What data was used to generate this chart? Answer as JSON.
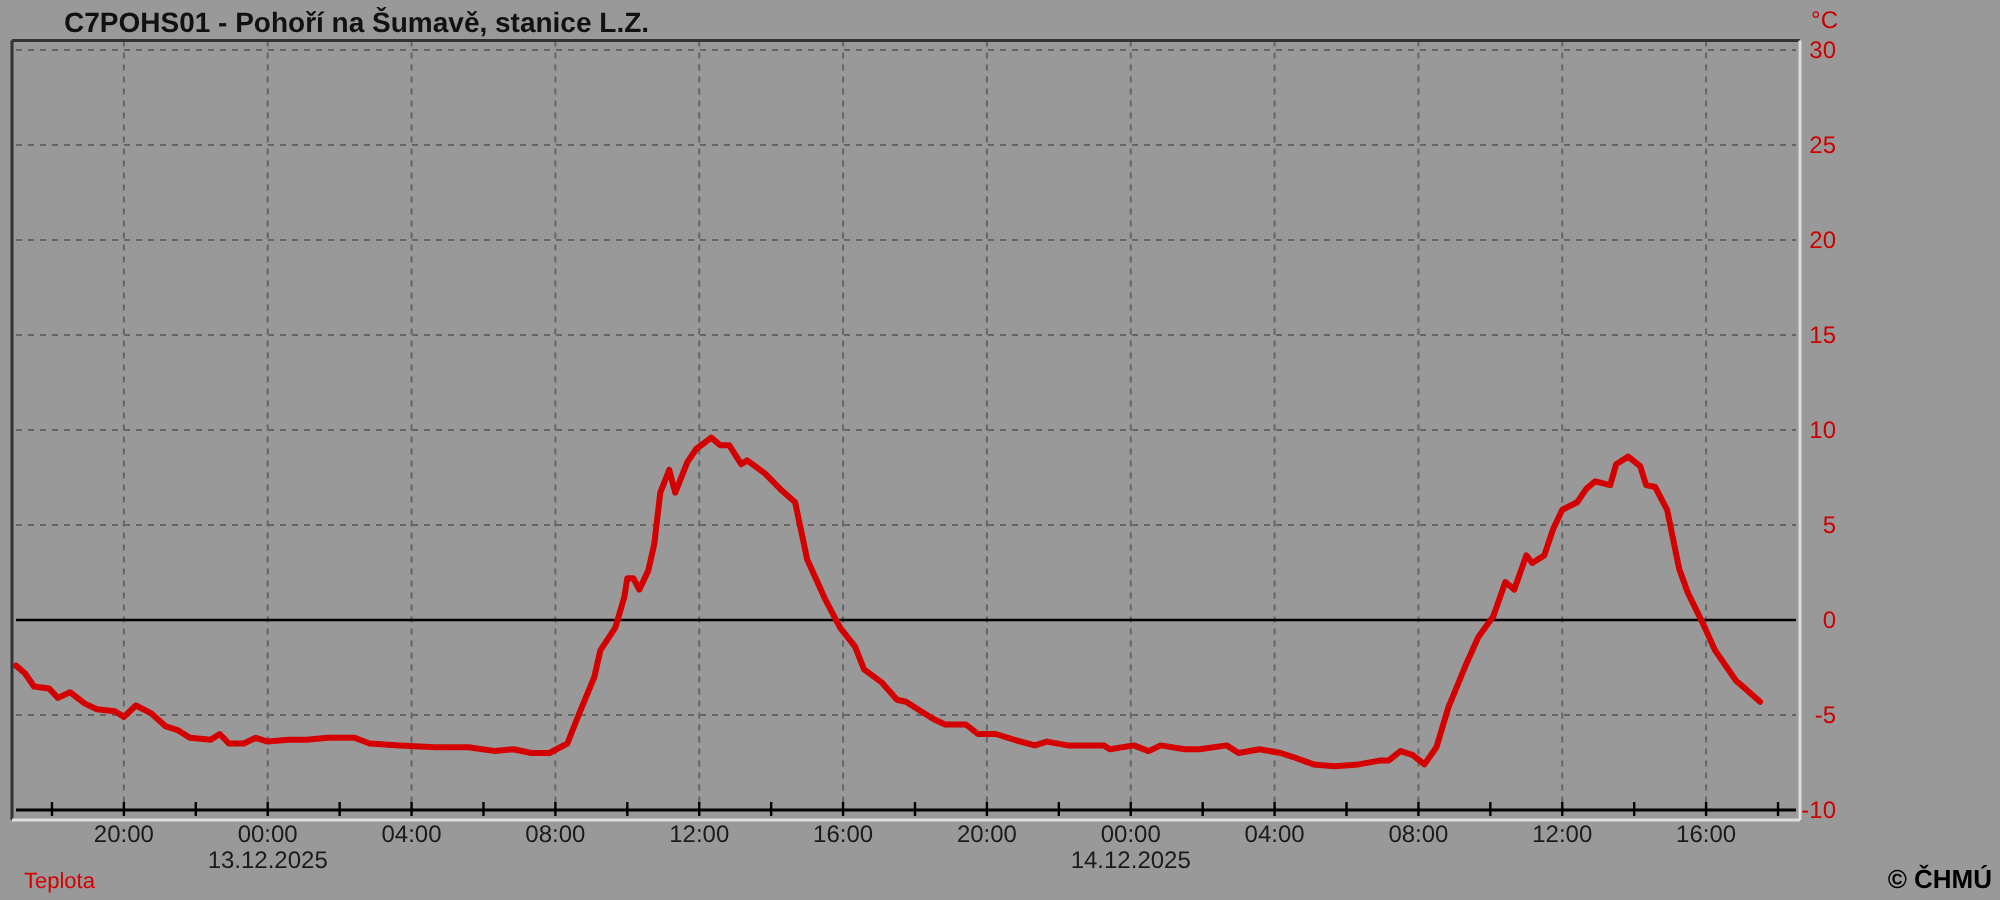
{
  "chart_data": {
    "type": "line",
    "title": "C7POHS01 - Pohoří na Šumavě, stanice L.Z.",
    "ylabel": "°C",
    "annotations": [
      "© ČHMÚ"
    ],
    "x": [
      "2025-12-12T17:00",
      "2025-12-12T17:15",
      "2025-12-12T17:30",
      "2025-12-12T17:55",
      "2025-12-12T18:10",
      "2025-12-12T18:30",
      "2025-12-12T18:55",
      "2025-12-12T19:15",
      "2025-12-12T19:45",
      "2025-12-12T20:00",
      "2025-12-12T20:20",
      "2025-12-12T20:45",
      "2025-12-12T21:10",
      "2025-12-12T21:30",
      "2025-12-12T21:50",
      "2025-12-12T22:25",
      "2025-12-12T22:40",
      "2025-12-12T22:55",
      "2025-12-12T23:20",
      "2025-12-12T23:40",
      "2025-12-13T00:00",
      "2025-12-13T00:35",
      "2025-12-13T01:05",
      "2025-12-13T01:40",
      "2025-12-13T02:25",
      "2025-12-13T02:50",
      "2025-12-13T03:40",
      "2025-12-13T04:40",
      "2025-12-13T05:35",
      "2025-12-13T06:20",
      "2025-12-13T06:50",
      "2025-12-13T07:20",
      "2025-12-13T07:50",
      "2025-12-13T08:20",
      "2025-12-13T08:40",
      "2025-12-13T09:05",
      "2025-12-13T09:15",
      "2025-12-13T09:40",
      "2025-12-13T09:55",
      "2025-12-13T10:00",
      "2025-12-13T10:10",
      "2025-12-13T10:20",
      "2025-12-13T10:35",
      "2025-12-13T10:45",
      "2025-12-13T10:55",
      "2025-12-13T11:10",
      "2025-12-13T11:20",
      "2025-12-13T11:40",
      "2025-12-13T11:55",
      "2025-12-13T12:20",
      "2025-12-13T12:35",
      "2025-12-13T12:50",
      "2025-12-13T13:10",
      "2025-12-13T13:20",
      "2025-12-13T13:50",
      "2025-12-13T14:15",
      "2025-12-13T14:40",
      "2025-12-13T15:00",
      "2025-12-13T15:30",
      "2025-12-13T15:55",
      "2025-12-13T16:20",
      "2025-12-13T16:35",
      "2025-12-13T17:05",
      "2025-12-13T17:30",
      "2025-12-13T17:45",
      "2025-12-13T18:10",
      "2025-12-13T18:30",
      "2025-12-13T18:50",
      "2025-12-13T19:25",
      "2025-12-13T19:45",
      "2025-12-13T20:15",
      "2025-12-13T20:45",
      "2025-12-13T21:20",
      "2025-12-13T21:40",
      "2025-12-13T22:15",
      "2025-12-13T23:15",
      "2025-12-13T23:25",
      "2025-12-14T00:05",
      "2025-12-14T00:30",
      "2025-12-14T00:50",
      "2025-12-14T01:30",
      "2025-12-14T01:55",
      "2025-12-14T02:40",
      "2025-12-14T03:00",
      "2025-12-14T03:35",
      "2025-12-14T04:10",
      "2025-12-14T04:30",
      "2025-12-14T05:05",
      "2025-12-14T05:40",
      "2025-12-14T06:20",
      "2025-12-14T06:55",
      "2025-12-14T07:10",
      "2025-12-14T07:30",
      "2025-12-14T07:50",
      "2025-12-14T08:10",
      "2025-12-14T08:30",
      "2025-12-14T08:50",
      "2025-12-14T09:20",
      "2025-12-14T09:40",
      "2025-12-14T10:05",
      "2025-12-14T10:25",
      "2025-12-14T10:40",
      "2025-12-14T11:00",
      "2025-12-14T11:10",
      "2025-12-14T11:30",
      "2025-12-14T11:45",
      "2025-12-14T12:00",
      "2025-12-14T12:25",
      "2025-12-14T12:40",
      "2025-12-14T12:55",
      "2025-12-14T13:20",
      "2025-12-14T13:30",
      "2025-12-14T13:50",
      "2025-12-14T14:10",
      "2025-12-14T14:20",
      "2025-12-14T14:35",
      "2025-12-14T14:55",
      "2025-12-14T15:15",
      "2025-12-14T15:30",
      "2025-12-14T15:55",
      "2025-12-14T16:15",
      "2025-12-14T16:50",
      "2025-12-14T17:05",
      "2025-12-14T17:30"
    ],
    "series": [
      {
        "name": "Teplota",
        "color": "#d40000",
        "values": [
          -2.4,
          -2.8,
          -3.5,
          -3.6,
          -4.1,
          -3.8,
          -4.4,
          -4.7,
          -4.8,
          -5.1,
          -4.5,
          -4.9,
          -5.6,
          -5.8,
          -6.2,
          -6.3,
          -6.0,
          -6.5,
          -6.5,
          -6.2,
          -6.4,
          -6.3,
          -6.3,
          -6.2,
          -6.2,
          -6.5,
          -6.6,
          -6.7,
          -6.7,
          -6.9,
          -6.8,
          -7.0,
          -7.0,
          -6.5,
          -4.9,
          -3.0,
          -1.6,
          -0.4,
          1.2,
          2.2,
          2.2,
          1.6,
          2.6,
          4.0,
          6.7,
          7.9,
          6.7,
          8.3,
          9.0,
          9.6,
          9.2,
          9.2,
          8.2,
          8.4,
          7.7,
          6.9,
          6.2,
          3.2,
          1.1,
          -0.4,
          -1.4,
          -2.6,
          -3.3,
          -4.2,
          -4.3,
          -4.8,
          -5.2,
          -5.5,
          -5.5,
          -6.0,
          -6.0,
          -6.3,
          -6.6,
          -6.4,
          -6.6,
          -6.6,
          -6.8,
          -6.6,
          -6.9,
          -6.6,
          -6.8,
          -6.8,
          -6.6,
          -7.0,
          -6.8,
          -7.0,
          -7.2,
          -7.6,
          -7.7,
          -7.6,
          -7.4,
          -7.4,
          -6.9,
          -7.1,
          -7.6,
          -6.7,
          -4.6,
          -2.3,
          -0.9,
          0.2,
          2.0,
          1.6,
          3.4,
          3.0,
          3.4,
          4.8,
          5.8,
          6.2,
          6.9,
          7.3,
          7.1,
          8.2,
          8.6,
          8.1,
          7.1,
          7.0,
          5.8,
          2.7,
          1.4,
          -0.2,
          -1.6,
          -3.2,
          -3.6,
          -4.3
        ]
      }
    ],
    "xlim": [
      "2025-12-12T17:00",
      "2025-12-14T18:30"
    ],
    "xticks": [
      {
        "value": "2025-12-12T18:00",
        "label": null
      },
      {
        "value": "2025-12-12T20:00",
        "label": "20:00"
      },
      {
        "value": "2025-12-12T22:00",
        "label": null
      },
      {
        "value": "2025-12-13T00:00",
        "label": "00:00\n13.12.2025"
      },
      {
        "value": "2025-12-13T02:00",
        "label": null
      },
      {
        "value": "2025-12-13T04:00",
        "label": "04:00"
      },
      {
        "value": "2025-12-13T06:00",
        "label": null
      },
      {
        "value": "2025-12-13T08:00",
        "label": "08:00"
      },
      {
        "value": "2025-12-13T10:00",
        "label": null
      },
      {
        "value": "2025-12-13T12:00",
        "label": "12:00"
      },
      {
        "value": "2025-12-13T14:00",
        "label": null
      },
      {
        "value": "2025-12-13T16:00",
        "label": "16:00"
      },
      {
        "value": "2025-12-13T18:00",
        "label": null
      },
      {
        "value": "2025-12-13T20:00",
        "label": "20:00"
      },
      {
        "value": "2025-12-13T22:00",
        "label": null
      },
      {
        "value": "2025-12-14T00:00",
        "label": "00:00\n14.12.2025"
      },
      {
        "value": "2025-12-14T02:00",
        "label": null
      },
      {
        "value": "2025-12-14T04:00",
        "label": "04:00"
      },
      {
        "value": "2025-12-14T06:00",
        "label": null
      },
      {
        "value": "2025-12-14T08:00",
        "label": "08:00"
      },
      {
        "value": "2025-12-14T10:00",
        "label": null
      },
      {
        "value": "2025-12-14T12:00",
        "label": "12:00"
      },
      {
        "value": "2025-12-14T14:00",
        "label": null
      },
      {
        "value": "2025-12-14T16:00",
        "label": "16:00"
      },
      {
        "value": "2025-12-14T18:00",
        "label": null
      }
    ],
    "ylim": [
      -10,
      30.5
    ],
    "yticks": [
      -10,
      -5,
      0,
      5,
      10,
      15,
      20,
      25,
      30
    ],
    "grid": true,
    "legend": "bottom left",
    "ref_lines": [
      {
        "axis": "y",
        "value": 0,
        "color": "#000000"
      }
    ]
  }
}
